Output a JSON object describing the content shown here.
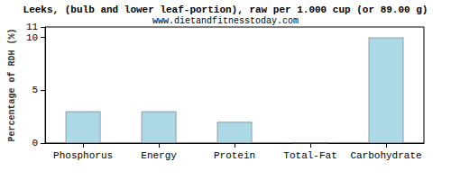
{
  "chart_data": {
    "type": "bar",
    "title": "Leeks, (bulb and lower leaf-portion), raw per 1.000 cup (or 89.00 g)",
    "subtitle": "www.dietandfitnesstoday.com",
    "y_label": "Percentage of RDH (%)",
    "categories": [
      "Phosphorus",
      "Energy",
      "Protein",
      "Total-Fat",
      "Carbohydrate"
    ],
    "values": [
      3,
      3,
      2,
      0,
      10
    ],
    "color": "#add8e6",
    "ylim": [
      0,
      11
    ],
    "yticks": [
      0,
      5,
      10
    ],
    "grid": false
  }
}
